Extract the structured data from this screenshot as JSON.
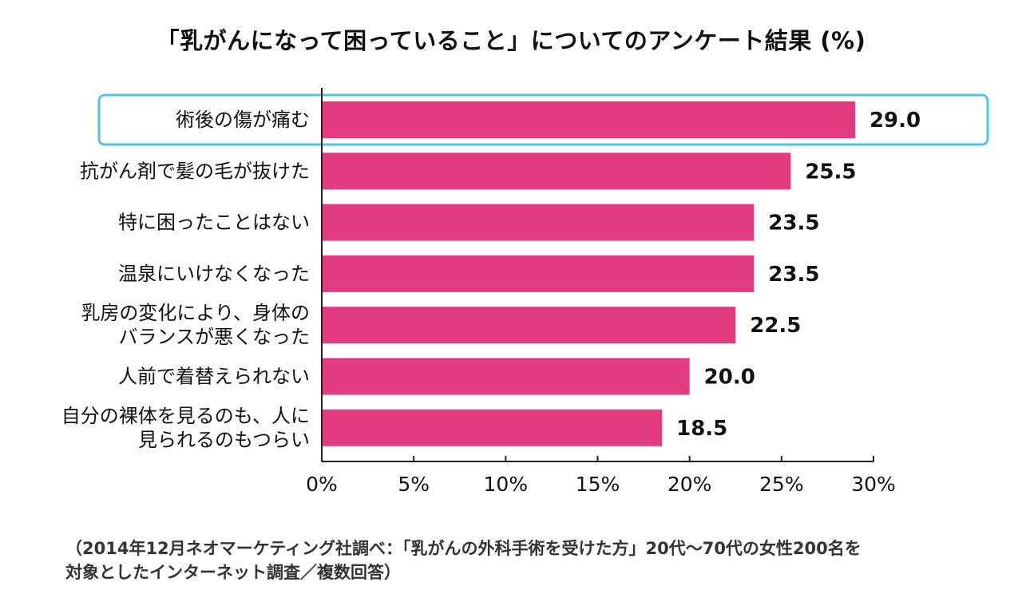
{
  "title": "「乳がんになって困っていること」についてのアンケート結果 (%)",
  "chart_data": {
    "type": "bar",
    "orientation": "horizontal",
    "title": "「乳がんになって困っていること」についてのアンケート結果 (%)",
    "categories": [
      [
        "術後の傷が痛む"
      ],
      [
        "抗がん剤で髪の毛が抜けた"
      ],
      [
        "特に困ったことはない"
      ],
      [
        "温泉にいけなくなった"
      ],
      [
        "乳房の変化により、身体の",
        "バランスが悪くなった"
      ],
      [
        "人前で着替えられない"
      ],
      [
        "自分の裸体を見るのも、人に",
        "見られるのもつらい"
      ]
    ],
    "values": [
      29.0,
      25.5,
      23.5,
      23.5,
      22.5,
      20.0,
      18.5
    ],
    "value_labels": [
      "29.0",
      "25.5",
      "23.5",
      "23.5",
      "22.5",
      "20.0",
      "18.5"
    ],
    "xlim": [
      0,
      30
    ],
    "xticks": [
      0,
      5,
      10,
      15,
      20,
      25,
      30
    ],
    "xtick_labels": [
      "0%",
      "5%",
      "10%",
      "15%",
      "20%",
      "25%",
      "30%"
    ],
    "highlighted_index": 0,
    "bar_color": "#e23b80",
    "highlight_color": "#4fc3e8",
    "grid": false
  },
  "source": {
    "line1": "（2014年12月ネオマーケティング社調べ：「乳がんの外科手術を受けた方」20代〜70代の女性200名を",
    "line2": "対象としたインターネット調査／複数回答）"
  }
}
